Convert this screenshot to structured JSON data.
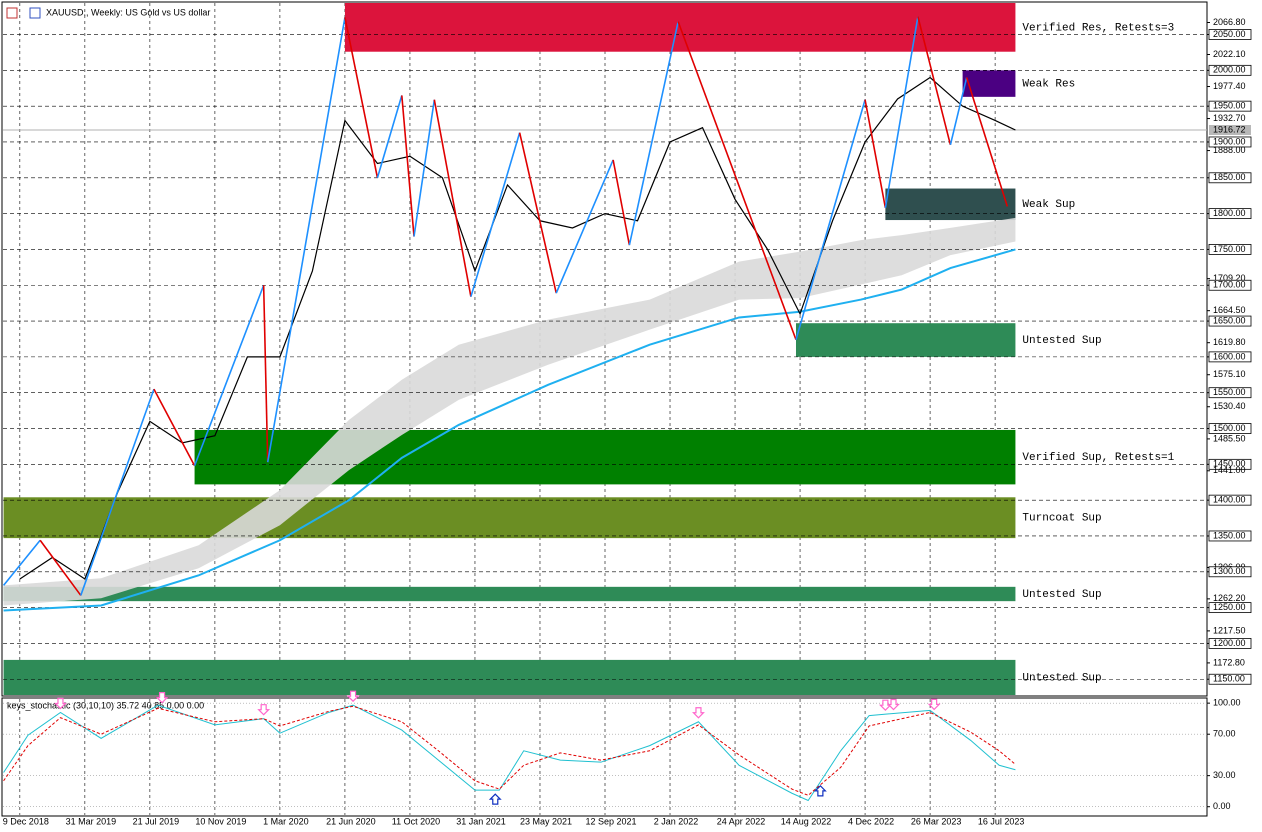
{
  "chart_data": [
    {
      "type": "price",
      "title": "XAUUSD., Weekly: US Gold vs US dollar",
      "xlim": [
        "2018-11-10",
        "2024-07-15"
      ],
      "xticks": [
        {
          "value": "2018-12-09",
          "label": "9 Dec 2018"
        },
        {
          "value": "2019-03-31",
          "label": "31 Mar 2019"
        },
        {
          "value": "2019-07-21",
          "label": "21 Jul 2019"
        },
        {
          "value": "2019-11-10",
          "label": "10 Nov 2019"
        },
        {
          "value": "2020-03-01",
          "label": "1 Mar 2020"
        },
        {
          "value": "2020-06-21",
          "label": "21 Jun 2020"
        },
        {
          "value": "2020-10-11",
          "label": "11 Oct 2020"
        },
        {
          "value": "2021-01-31",
          "label": "31 Jan 2021"
        },
        {
          "value": "2021-05-23",
          "label": "23 May 2021"
        },
        {
          "value": "2021-09-12",
          "label": "12 Sep 2021"
        },
        {
          "value": "2022-01-02",
          "label": "2 Jan 2022"
        },
        {
          "value": "2022-04-24",
          "label": "24 Apr 2022"
        },
        {
          "value": "2022-08-14",
          "label": "14 Aug 2022"
        },
        {
          "value": "2022-12-04",
          "label": "4 Dec 2022"
        },
        {
          "value": "2023-03-26",
          "label": "26 Mar 2023"
        },
        {
          "value": "2023-07-16",
          "label": "16 Jul 2023"
        }
      ],
      "ylim": [
        1128,
        2094
      ],
      "yticks": [
        {
          "value": 2066.8,
          "label": "2066.80"
        },
        {
          "value": 2050,
          "label": "2050.00"
        },
        {
          "value": 2022.1,
          "label": "2022.10"
        },
        {
          "value": 2000,
          "label": "2000.00"
        },
        {
          "value": 1977.4,
          "label": "1977.40"
        },
        {
          "value": 1950,
          "label": "1950.00"
        },
        {
          "value": 1932.7,
          "label": "1932.70"
        },
        {
          "value": 1900,
          "label": "1900.00"
        },
        {
          "value": 1888,
          "label": "1888.00"
        },
        {
          "value": 1850,
          "label": "1850.00"
        },
        {
          "value": 1800,
          "label": "1800.00"
        },
        {
          "value": 1750,
          "label": "1750.00"
        },
        {
          "value": 1709.2,
          "label": "1709.20"
        },
        {
          "value": 1700,
          "label": "1700.00"
        },
        {
          "value": 1664.5,
          "label": "1664.50"
        },
        {
          "value": 1650,
          "label": "1650.00"
        },
        {
          "value": 1619.8,
          "label": "1619.80"
        },
        {
          "value": 1600,
          "label": "1600.00"
        },
        {
          "value": 1575.1,
          "label": "1575.10"
        },
        {
          "value": 1550,
          "label": "1550.00"
        },
        {
          "value": 1530.4,
          "label": "1530.40"
        },
        {
          "value": 1500,
          "label": "1500.00"
        },
        {
          "value": 1485.5,
          "label": "1485.50"
        },
        {
          "value": 1450,
          "label": "1450.00"
        },
        {
          "value": 1441,
          "label": "1441.00"
        },
        {
          "value": 1400,
          "label": "1400.00"
        },
        {
          "value": 1350,
          "label": "1350.00"
        },
        {
          "value": 1306,
          "label": "1306.00"
        },
        {
          "value": 1300,
          "label": "1300.00"
        },
        {
          "value": 1262.2,
          "label": "1262.20"
        },
        {
          "value": 1250,
          "label": "1250.00"
        },
        {
          "value": 1217.5,
          "label": "1217.50"
        },
        {
          "value": 1200,
          "label": "1200.00"
        },
        {
          "value": 1172.8,
          "label": "1172.80"
        },
        {
          "value": 1150,
          "label": "1150.00"
        }
      ],
      "last_price": {
        "value": 1916.72,
        "label": "1916.72"
      },
      "grid": true,
      "zones": [
        {
          "label": "Verified Res, Retests=3",
          "start": "2020-06-21",
          "end": "2023-08-20",
          "low": 2026,
          "high": 2094,
          "color": "#dc143c"
        },
        {
          "label": "Weak Res",
          "start": "2023-05-21",
          "end": "2023-08-20",
          "low": 1963,
          "high": 2000,
          "color": "#4b0082"
        },
        {
          "label": "Weak Sup",
          "start": "2023-01-08",
          "end": "2023-08-20",
          "low": 1791,
          "high": 1835,
          "color": "#2f4f4f"
        },
        {
          "label": "Untested Sup",
          "start": "2022-08-07",
          "end": "2023-08-20",
          "low": 1600,
          "high": 1647,
          "color": "#2e8b57"
        },
        {
          "label": "Verified Sup, Retests=1",
          "start": "2019-10-06",
          "end": "2023-08-20",
          "low": 1422,
          "high": 1498,
          "color": "#008000"
        },
        {
          "label": "Turncoat Sup",
          "start": "2018-11-11",
          "end": "2023-08-20",
          "low": 1347,
          "high": 1404,
          "color": "#6b8e23"
        },
        {
          "label": "Untested Sup",
          "start": "2018-11-11",
          "end": "2023-08-20",
          "low": 1259,
          "high": 1279,
          "color": "#2e8b57"
        },
        {
          "label": "Untested Sup",
          "start": "2018-11-11",
          "end": "2023-08-20",
          "low": 1128,
          "high": 1177,
          "color": "#2e8b57"
        }
      ],
      "ma_band": {
        "color": "#d9d9d9",
        "x": [
          "2018-11-11",
          "2019-04-28",
          "2019-10-13",
          "2020-03-01",
          "2020-06-28",
          "2020-09-27",
          "2021-01-03",
          "2021-06-06",
          "2021-11-28",
          "2022-05-01",
          "2022-08-14",
          "2022-11-27",
          "2023-02-05",
          "2023-04-30",
          "2023-08-20"
        ],
        "upper": [
          1281,
          1291,
          1337,
          1414,
          1512,
          1568,
          1617,
          1652,
          1680,
          1733,
          1747,
          1763,
          1770,
          1780,
          1794
        ],
        "lower": [
          1253,
          1263,
          1305,
          1365,
          1442,
          1491,
          1540,
          1589,
          1638,
          1680,
          1682,
          1701,
          1714,
          1742,
          1761
        ]
      },
      "ma": {
        "color": "#1fb0f0",
        "x": [
          "2018-11-11",
          "2019-04-28",
          "2019-10-13",
          "2020-03-01",
          "2020-06-28",
          "2020-09-27",
          "2021-01-03",
          "2021-06-06",
          "2021-11-28",
          "2022-05-01",
          "2022-08-14",
          "2022-11-27",
          "2023-02-05",
          "2023-04-30",
          "2023-08-20"
        ],
        "values": [
          1246,
          1253,
          1295,
          1344,
          1400,
          1459,
          1505,
          1561,
          1617,
          1655,
          1663,
          1680,
          1694,
          1724,
          1750
        ]
      },
      "price": {
        "color": "#000000",
        "x": [
          "2018-12-09",
          "2019-02-03",
          "2019-03-31",
          "2019-05-26",
          "2019-07-21",
          "2019-09-15",
          "2019-11-10",
          "2020-01-05",
          "2020-03-01",
          "2020-04-26",
          "2020-06-21",
          "2020-08-16",
          "2020-10-11",
          "2020-12-06",
          "2021-01-31",
          "2021-03-28",
          "2021-05-23",
          "2021-07-18",
          "2021-09-12",
          "2021-11-07",
          "2022-01-02",
          "2022-02-27",
          "2022-04-24",
          "2022-06-19",
          "2022-08-14",
          "2022-10-09",
          "2022-12-04",
          "2023-01-29",
          "2023-03-26",
          "2023-05-21",
          "2023-07-16",
          "2023-08-20"
        ],
        "values": [
          1290,
          1320,
          1290,
          1410,
          1510,
          1480,
          1490,
          1600,
          1600,
          1720,
          1930,
          1870,
          1880,
          1850,
          1720,
          1840,
          1790,
          1780,
          1800,
          1790,
          1900,
          1920,
          1820,
          1750,
          1660,
          1790,
          1900,
          1960,
          1990,
          1950,
          1930,
          1916.72
        ]
      },
      "zigzag": {
        "up_color": "#1e90ff",
        "down_color": "#e00000",
        "x": [
          "2018-11-11",
          "2019-01-13",
          "2019-03-24",
          "2019-07-28",
          "2019-10-06",
          "2020-02-02",
          "2020-02-09",
          "2020-06-21",
          "2020-08-16",
          "2020-09-27",
          "2020-10-18",
          "2020-11-22",
          "2021-01-24",
          "2021-04-18",
          "2021-06-20",
          "2021-09-26",
          "2021-10-24",
          "2022-01-16",
          "2022-08-07",
          "2022-12-04",
          "2023-01-08",
          "2023-03-05",
          "2023-04-30",
          "2023-05-28",
          "2023-08-06"
        ],
        "values": [
          1281,
          1344,
          1267,
          1555,
          1448,
          1700,
          1453,
          2074,
          1850,
          1965,
          1768,
          1959,
          1684,
          1913,
          1689,
          1875,
          1756,
          2068,
          1624,
          1959,
          1808,
          2075,
          1896,
          1990,
          1810
        ]
      }
    },
    {
      "type": "stochastic",
      "title": "keys_stochastic (30,10,10) 35.72 40.85 0.00 0.00",
      "ylim": [
        -8,
        104
      ],
      "yticks": [
        {
          "value": 100,
          "label": "100.00"
        },
        {
          "value": 70,
          "label": "70.00"
        },
        {
          "value": 30,
          "label": "30.00"
        },
        {
          "value": 0,
          "label": "0.00"
        }
      ],
      "x": [
        "2018-11-11",
        "2018-12-23",
        "2019-02-17",
        "2019-04-28",
        "2019-08-04",
        "2019-11-10",
        "2020-02-02",
        "2020-03-01",
        "2020-05-24",
        "2020-07-05",
        "2020-09-27",
        "2020-11-29",
        "2021-01-31",
        "2021-03-14",
        "2021-04-25",
        "2021-06-27",
        "2021-09-05",
        "2021-11-28",
        "2022-02-20",
        "2022-05-01",
        "2022-07-31",
        "2022-08-28",
        "2022-10-23",
        "2022-12-11",
        "2023-03-26",
        "2023-06-04",
        "2023-07-23",
        "2023-08-20"
      ],
      "main": {
        "color": "#20c0d0",
        "values": [
          33,
          69,
          91,
          66,
          98,
          79,
          85,
          71,
          91,
          98,
          74,
          45,
          16,
          16,
          54,
          45,
          43,
          59,
          82,
          40,
          13,
          6,
          54,
          88,
          93,
          64,
          40,
          35.72
        ]
      },
      "signal": {
        "color": "#e00000",
        "values": [
          25,
          59,
          86,
          70,
          95,
          82,
          85,
          78,
          92,
          97,
          82,
          54,
          25,
          17,
          40,
          52,
          45,
          54,
          79,
          50,
          17,
          11,
          38,
          78,
          91,
          72,
          54,
          40.85
        ]
      },
      "down_arrows": {
        "color": "#ff66cc",
        "x": [
          "2019-02-17",
          "2019-08-11",
          "2020-02-02",
          "2020-07-05",
          "2022-02-20",
          "2023-01-08",
          "2023-01-22",
          "2023-04-02"
        ]
      },
      "up_arrows": {
        "color": "#1030c0",
        "x": [
          "2021-03-07",
          "2022-09-18"
        ]
      }
    }
  ]
}
